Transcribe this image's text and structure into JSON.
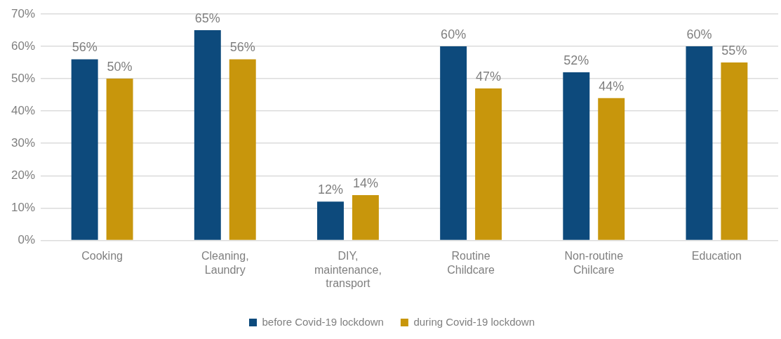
{
  "chart_data": {
    "type": "bar",
    "categories": [
      "Cooking",
      "Cleaning, Laundry",
      "DIY, maintenance, transport",
      "Routine Childcare",
      "Non-routine Chilcare",
      "Education"
    ],
    "series": [
      {
        "name": "before Covid-19 lockdown",
        "color": "#0d4a7c",
        "values": [
          56,
          65,
          12,
          60,
          52,
          60
        ],
        "value_labels": [
          "56%",
          "65%",
          "12%",
          "60%",
          "52%",
          "60%"
        ]
      },
      {
        "name": "during Covid-19 lockdown",
        "color": "#c8960c",
        "values": [
          50,
          56,
          14,
          47,
          44,
          55
        ],
        "value_labels": [
          "50%",
          "56%",
          "14%",
          "47%",
          "44%",
          "55%"
        ]
      }
    ],
    "ylim": [
      0,
      70
    ],
    "yticks": [
      {
        "value": 0,
        "label": "0%"
      },
      {
        "value": 10,
        "label": "10%"
      },
      {
        "value": 20,
        "label": "20%"
      },
      {
        "value": 30,
        "label": "30%"
      },
      {
        "value": 40,
        "label": "40%"
      },
      {
        "value": 50,
        "label": "50%"
      },
      {
        "value": 60,
        "label": "60%"
      },
      {
        "value": 70,
        "label": "70%"
      }
    ],
    "grid": "y",
    "legend": "bottom"
  }
}
